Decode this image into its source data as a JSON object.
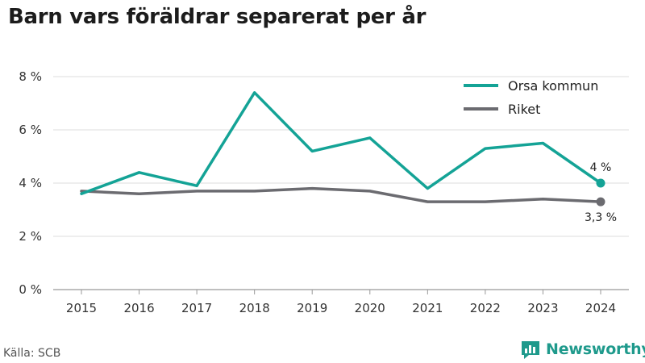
{
  "title": "Barn vars föräldrar separerat per år",
  "source": "Källa: SCB",
  "brand": {
    "name": "Newsworthy",
    "color": "#1f9a8c"
  },
  "chart_data": {
    "type": "line",
    "x": [
      "2015",
      "2016",
      "2017",
      "2018",
      "2019",
      "2020",
      "2021",
      "2022",
      "2023",
      "2024"
    ],
    "series": [
      {
        "name": "Orsa kommun",
        "color": "#14a396",
        "values": [
          3.6,
          4.4,
          3.9,
          7.4,
          5.2,
          5.7,
          3.8,
          5.3,
          5.5,
          4.0
        ],
        "end_label": "4 %"
      },
      {
        "name": "Riket",
        "color": "#6b6b70",
        "values": [
          3.7,
          3.6,
          3.7,
          3.7,
          3.8,
          3.7,
          3.3,
          3.3,
          3.4,
          3.3
        ],
        "end_label": "3,3 %"
      }
    ],
    "y_ticks": [
      0,
      2,
      4,
      6,
      8
    ],
    "y_tick_labels": [
      "0 %",
      "2 %",
      "4 %",
      "6 %",
      "8 %"
    ],
    "ylim": [
      0,
      8
    ],
    "grid": "horizontal",
    "legend_position": "top-right"
  }
}
